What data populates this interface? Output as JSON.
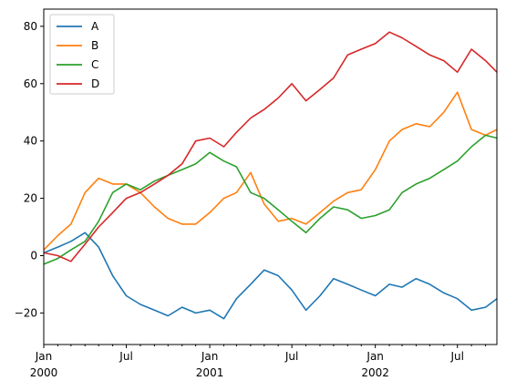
{
  "chart_data": {
    "type": "line",
    "title": "",
    "xlabel": "",
    "ylabel": "",
    "legend_position": "top-left",
    "grid": false,
    "x_range": [
      "2000-01-01",
      "2002-09-26"
    ],
    "ylim": [
      -31,
      86
    ],
    "y_ticks": [
      -20,
      0,
      20,
      40,
      60,
      80
    ],
    "x_ticks": [
      {
        "label": "Jan",
        "sub": "2000",
        "date": "2000-01-01"
      },
      {
        "label": "Jul",
        "sub": "",
        "date": "2000-07-01"
      },
      {
        "label": "Jan",
        "sub": "2001",
        "date": "2001-01-01"
      },
      {
        "label": "Jul",
        "sub": "",
        "date": "2001-07-01"
      },
      {
        "label": "Jan",
        "sub": "2002",
        "date": "2002-01-01"
      },
      {
        "label": "Jul",
        "sub": "",
        "date": "2002-07-01"
      }
    ],
    "x": [
      "2000-01-01",
      "2000-02-01",
      "2000-03-01",
      "2000-04-01",
      "2000-05-01",
      "2000-06-01",
      "2000-07-01",
      "2000-08-01",
      "2000-09-01",
      "2000-10-01",
      "2000-11-01",
      "2000-12-01",
      "2001-01-01",
      "2001-02-01",
      "2001-03-01",
      "2001-04-01",
      "2001-05-01",
      "2001-06-01",
      "2001-07-01",
      "2001-08-01",
      "2001-09-01",
      "2001-10-01",
      "2001-11-01",
      "2001-12-01",
      "2002-01-01",
      "2002-02-01",
      "2002-03-01",
      "2002-04-01",
      "2002-05-01",
      "2002-06-01",
      "2002-07-01",
      "2002-08-01",
      "2002-09-01",
      "2002-09-26"
    ],
    "series": [
      {
        "name": "A",
        "color": "#1f77b4",
        "values": [
          1,
          3,
          5,
          8,
          3,
          -7,
          -14,
          -17,
          -19,
          -21,
          -18,
          -20,
          -19,
          -22,
          -15,
          -10,
          -5,
          -7,
          -12,
          -19,
          -14,
          -8,
          -10,
          -12,
          -14,
          -10,
          -11,
          -8,
          -10,
          -13,
          -15,
          -19,
          -18,
          -15
        ]
      },
      {
        "name": "B",
        "color": "#ff7f0e",
        "values": [
          2,
          7,
          11,
          22,
          27,
          25,
          25,
          22,
          17,
          13,
          11,
          11,
          15,
          20,
          22,
          29,
          18,
          12,
          13,
          11,
          15,
          19,
          22,
          23,
          30,
          40,
          44,
          46,
          45,
          50,
          57,
          44,
          42,
          44
        ]
      },
      {
        "name": "C",
        "color": "#2ca02c",
        "values": [
          -3,
          -1,
          2,
          5,
          12,
          22,
          25,
          23,
          26,
          28,
          30,
          32,
          36,
          33,
          31,
          22,
          20,
          16,
          12,
          8,
          13,
          17,
          16,
          13,
          14,
          16,
          22,
          25,
          27,
          30,
          33,
          38,
          42,
          41
        ]
      },
      {
        "name": "D",
        "color": "#d62728",
        "values": [
          1,
          0,
          -2,
          4,
          10,
          15,
          20,
          22,
          25,
          28,
          32,
          40,
          41,
          38,
          43,
          48,
          51,
          55,
          60,
          54,
          58,
          62,
          70,
          72,
          74,
          78,
          76,
          73,
          70,
          68,
          64,
          72,
          68,
          64
        ]
      }
    ]
  }
}
